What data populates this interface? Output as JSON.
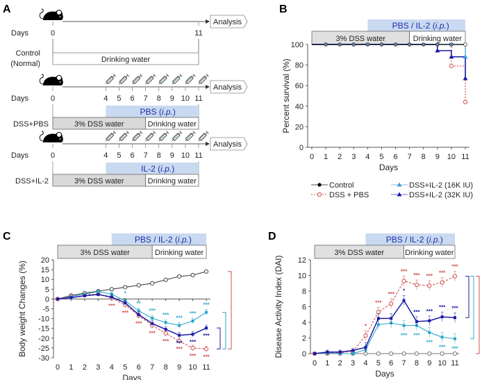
{
  "panels": {
    "A": {
      "label": "A",
      "analysis_label": "Analysis",
      "days_label": "Days",
      "colors": {
        "treatment_fill": "#c9d9f0",
        "treatment_text": "#1f2ea8",
        "dss_fill": "#d9d9d9"
      },
      "rows": [
        {
          "group": "Control\n(Normal)",
          "group_lines": [
            "Control",
            "(Normal)"
          ],
          "day_ticks": [
            "0",
            "11"
          ],
          "injections": false,
          "treatment": "",
          "bars": [
            {
              "label": "Drinking water",
              "from": 0,
              "to": 11,
              "type": "water"
            }
          ]
        },
        {
          "group": "DSS+PBS",
          "group_lines": [
            "DSS+PBS"
          ],
          "day_ticks": [
            "0",
            "4",
            "5",
            "6",
            "7",
            "8",
            "9",
            "10",
            "11"
          ],
          "injections": true,
          "treatment": "PBS",
          "treatment_suffix": "(i.p.)",
          "bars": [
            {
              "label": "3% DSS water",
              "from": 0,
              "to": 7,
              "type": "dss"
            },
            {
              "label": "Drinking water",
              "from": 7,
              "to": 11,
              "type": "water"
            }
          ]
        },
        {
          "group": "DSS+IL-2",
          "group_lines": [
            "DSS+IL-2"
          ],
          "day_ticks": [
            "0",
            "4",
            "5",
            "6",
            "7",
            "8",
            "9",
            "10",
            "11"
          ],
          "injections": true,
          "treatment": "IL-2",
          "treatment_suffix": "(i.p.)",
          "bars": [
            {
              "label": "3% DSS water",
              "from": 0,
              "to": 7,
              "type": "dss"
            },
            {
              "label": "Drinking water",
              "from": 7,
              "to": 11,
              "type": "water"
            }
          ]
        }
      ]
    },
    "treatment_header": {
      "treatment": "PBS / IL-2",
      "route": "(i.p.)",
      "dss": "3% DSS water",
      "water": "Drinking water"
    },
    "legend": [
      {
        "name": "Control",
        "color": "#000000",
        "marker": "filled-circle",
        "line": "solid"
      },
      {
        "name": "DSS + PBS",
        "color": "#d0504a",
        "marker": "open-circle",
        "line": "dotted"
      },
      {
        "name": "DSS+IL-2 (16K IU)",
        "color": "#3e9ad6",
        "marker": "filled-triangle",
        "line": "solid"
      },
      {
        "name": "DSS+IL-2 (32K IU)",
        "color": "#1a1aa8",
        "marker": "filled-triangle",
        "line": "solid"
      }
    ]
  },
  "chart_data": [
    {
      "id": "B",
      "type": "line",
      "title": "B",
      "xlabel": "Days",
      "ylabel": "Percent survival (%)",
      "x": [
        0,
        1,
        2,
        3,
        4,
        5,
        6,
        7,
        8,
        9,
        10,
        11
      ],
      "xlim": [
        0,
        11
      ],
      "ylim": [
        0,
        100
      ],
      "yticks": [
        0,
        20,
        40,
        60,
        80,
        100
      ],
      "step": true,
      "series": [
        {
          "name": "Control",
          "color": "#000000",
          "values": [
            100,
            100,
            100,
            100,
            100,
            100,
            100,
            100,
            100,
            100,
            100,
            100
          ]
        },
        {
          "name": "DSS + PBS",
          "color": "#d0504a",
          "values": [
            100,
            100,
            100,
            100,
            100,
            100,
            100,
            100,
            100,
            100,
            79,
            44
          ]
        },
        {
          "name": "DSS+IL-2 (16K IU)",
          "color": "#3e9ad6",
          "values": [
            100,
            100,
            100,
            100,
            100,
            100,
            100,
            100,
            100,
            100,
            100,
            88
          ]
        },
        {
          "name": "DSS+IL-2 (32K IU)",
          "color": "#1a1aa8",
          "values": [
            100,
            100,
            100,
            100,
            100,
            100,
            100,
            100,
            100,
            94,
            88,
            67
          ]
        }
      ],
      "legend_position": "bottom"
    },
    {
      "id": "C",
      "type": "line",
      "title": "C",
      "xlabel": "Days",
      "ylabel": "Body weight Changes (%)",
      "x": [
        0,
        1,
        2,
        3,
        4,
        5,
        6,
        7,
        8,
        9,
        10,
        11
      ],
      "xlim": [
        0,
        11
      ],
      "ylim": [
        -30,
        20
      ],
      "yticks": [
        -30,
        -25,
        -20,
        -15,
        -10,
        -5,
        0,
        5,
        10,
        15,
        20
      ],
      "series": [
        {
          "name": "Control",
          "color": "#444444",
          "values": [
            0,
            1.8,
            3,
            4,
            5,
            6,
            7,
            8,
            9.8,
            11.5,
            12.2,
            14
          ]
        },
        {
          "name": "DSS + PBS",
          "color": "#d0504a",
          "values": [
            0,
            1.5,
            2.2,
            2.5,
            0.5,
            -3,
            -8.5,
            -13.5,
            -17.5,
            -21.5,
            -25,
            -25.5
          ],
          "sig": [
            "",
            "",
            "",
            "",
            "***",
            "***",
            "***",
            "***",
            "***",
            "***",
            "***",
            "***"
          ]
        },
        {
          "name": "DSS+IL-2 (16K IU)",
          "color": "#2aa7c9",
          "values": [
            0,
            1.2,
            2.5,
            3.8,
            2.5,
            -1,
            -6,
            -9.8,
            -12,
            -13.5,
            -11.2,
            -6.8
          ],
          "sig": [
            "",
            "",
            "",
            "",
            "",
            "*",
            "**",
            "***",
            "***",
            "***",
            "***",
            "***"
          ]
        },
        {
          "name": "DSS+IL-2 (32K IU)",
          "color": "#1a1aa8",
          "values": [
            0,
            0.7,
            1.6,
            2.3,
            1,
            -2,
            -8,
            -12.5,
            -15.5,
            -18.5,
            -18,
            -14.8
          ],
          "sig": [
            "",
            "",
            "",
            "",
            "",
            "",
            "",
            "",
            "",
            "***",
            "***",
            "***"
          ]
        }
      ]
    },
    {
      "id": "D",
      "type": "line",
      "title": "D",
      "xlabel": "Days",
      "ylabel": "Disease Activity Index (DAI)",
      "x": [
        0,
        1,
        2,
        3,
        4,
        5,
        6,
        7,
        8,
        9,
        10,
        11
      ],
      "xlim": [
        0,
        11
      ],
      "ylim": [
        0,
        12
      ],
      "yticks": [
        0,
        2,
        4,
        6,
        8,
        10,
        12
      ],
      "series": [
        {
          "name": "Control",
          "color": "#777777",
          "values": [
            0,
            0,
            0,
            0,
            0,
            0,
            0,
            0,
            0,
            0,
            0,
            0
          ]
        },
        {
          "name": "DSS + PBS",
          "color": "#d0504a",
          "values": [
            0,
            0.1,
            0.1,
            0.3,
            2.3,
            5.3,
            6.4,
            9.3,
            8.8,
            8.7,
            9.1,
            9.9
          ],
          "sig": [
            "",
            "",
            "",
            "",
            "*",
            "***",
            "***",
            "***",
            "***",
            "***",
            "***",
            "***"
          ]
        },
        {
          "name": "DSS+IL-2 (16K IU)",
          "color": "#2aa7c9",
          "values": [
            0,
            0.1,
            0,
            0,
            0.5,
            3.7,
            3.9,
            3.6,
            3.6,
            2.7,
            2.1,
            1.9
          ],
          "sig": [
            "",
            "",
            "",
            "",
            "",
            "",
            "",
            "***",
            "***",
            "***",
            "***",
            "***"
          ]
        },
        {
          "name": "DSS+IL-2 (32K IU)",
          "color": "#1a1aa8",
          "values": [
            0,
            0.2,
            0.2,
            0.4,
            0.8,
            4.5,
            4.5,
            6.8,
            4.1,
            4.2,
            4.7,
            4.6
          ],
          "sig": [
            "",
            "",
            "",
            "",
            "",
            "",
            "",
            "*",
            "***",
            "***",
            "***",
            "***"
          ]
        }
      ]
    }
  ]
}
